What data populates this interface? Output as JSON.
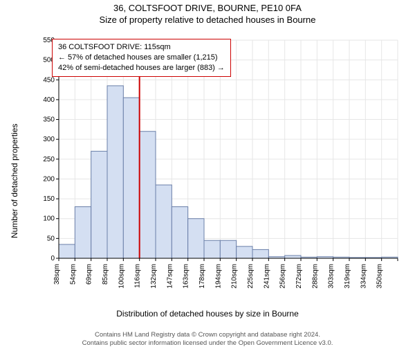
{
  "title": "36, COLTSFOOT DRIVE, BOURNE, PE10 0FA",
  "subtitle": "Size of property relative to detached houses in Bourne",
  "ylabel": "Number of detached properties",
  "xlabel": "Distribution of detached houses by size in Bourne",
  "annotation": {
    "line1": "36 COLTSFOOT DRIVE: 115sqm",
    "line2": "← 57% of detached houses are smaller (1,215)",
    "line3": "42% of semi-detached houses are larger (883) →",
    "border_color": "#cc0000",
    "text_color": "#000000"
  },
  "chart": {
    "type": "histogram",
    "categories": [
      "38sqm",
      "54sqm",
      "69sqm",
      "85sqm",
      "100sqm",
      "116sqm",
      "132sqm",
      "147sqm",
      "163sqm",
      "178sqm",
      "194sqm",
      "210sqm",
      "225sqm",
      "241sqm",
      "256sqm",
      "272sqm",
      "288sqm",
      "303sqm",
      "319sqm",
      "334sqm",
      "350sqm"
    ],
    "values": [
      35,
      130,
      270,
      435,
      405,
      320,
      185,
      130,
      100,
      45,
      45,
      30,
      22,
      4,
      7,
      3,
      4,
      3,
      2,
      2,
      3
    ],
    "bar_fill": "#d4dff2",
    "bar_stroke": "#6a7fa8",
    "bar_stroke_width": 1,
    "ylim": [
      0,
      550
    ],
    "ytick_step": 50,
    "grid_color": "#e6e6e6",
    "axis_color": "#000000",
    "background_color": "#ffffff",
    "marker_line": {
      "x_category_index": 5,
      "color": "#cc0000",
      "width": 2
    },
    "tick_fontsize": 10
  },
  "footer": {
    "line1": "Contains HM Land Registry data © Crown copyright and database right 2024.",
    "line2": "Contains public sector information licensed under the Open Government Licence v3.0."
  }
}
